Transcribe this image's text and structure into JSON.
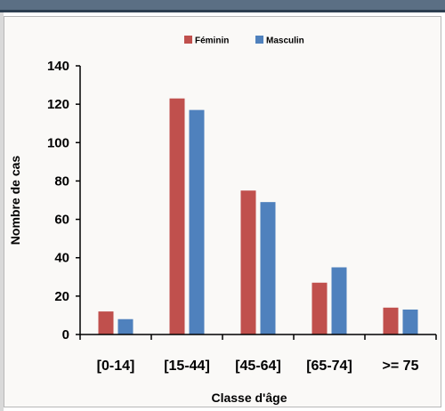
{
  "chart_data": {
    "type": "bar",
    "categories": [
      "[0-14]",
      "[15-44]",
      "[45-64]",
      "[65-74]",
      ">= 75"
    ],
    "series": [
      {
        "name": "Féminin",
        "values": [
          12,
          123,
          75,
          27,
          14
        ],
        "color": "#c0504d"
      },
      {
        "name": "Masculin",
        "values": [
          8,
          117,
          69,
          35,
          13
        ],
        "color": "#4f81bd"
      }
    ],
    "xlabel": "Classe d'âge",
    "ylabel": "Nombre de cas",
    "ylim": [
      0,
      140
    ],
    "yticks": [
      0,
      20,
      40,
      60,
      80,
      100,
      120,
      140
    ],
    "grid": false,
    "legend_position": "top-center"
  }
}
